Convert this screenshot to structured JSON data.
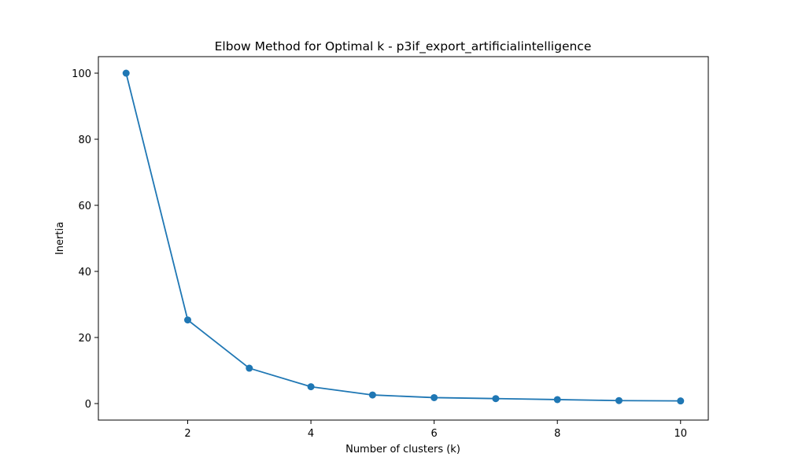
{
  "chart_data": {
    "type": "line",
    "title": "Elbow Method for Optimal k - p3if_export_artificialintelligence",
    "xlabel": "Number of clusters (k)",
    "ylabel": "Inertia",
    "x": [
      1,
      2,
      3,
      4,
      5,
      6,
      7,
      8,
      9,
      10
    ],
    "series": [
      {
        "values": [
          100.0,
          25.3,
          10.7,
          5.1,
          2.6,
          1.8,
          1.5,
          1.2,
          0.9,
          0.8
        ],
        "color": "#1f77b4",
        "marker": "circle"
      }
    ],
    "xlim": [
      0.55,
      10.45
    ],
    "ylim": [
      -5.0,
      105.0
    ],
    "xticks": [
      2,
      4,
      6,
      8,
      10
    ],
    "yticks": [
      0,
      20,
      40,
      60,
      80,
      100
    ],
    "grid": false,
    "legend": false
  }
}
